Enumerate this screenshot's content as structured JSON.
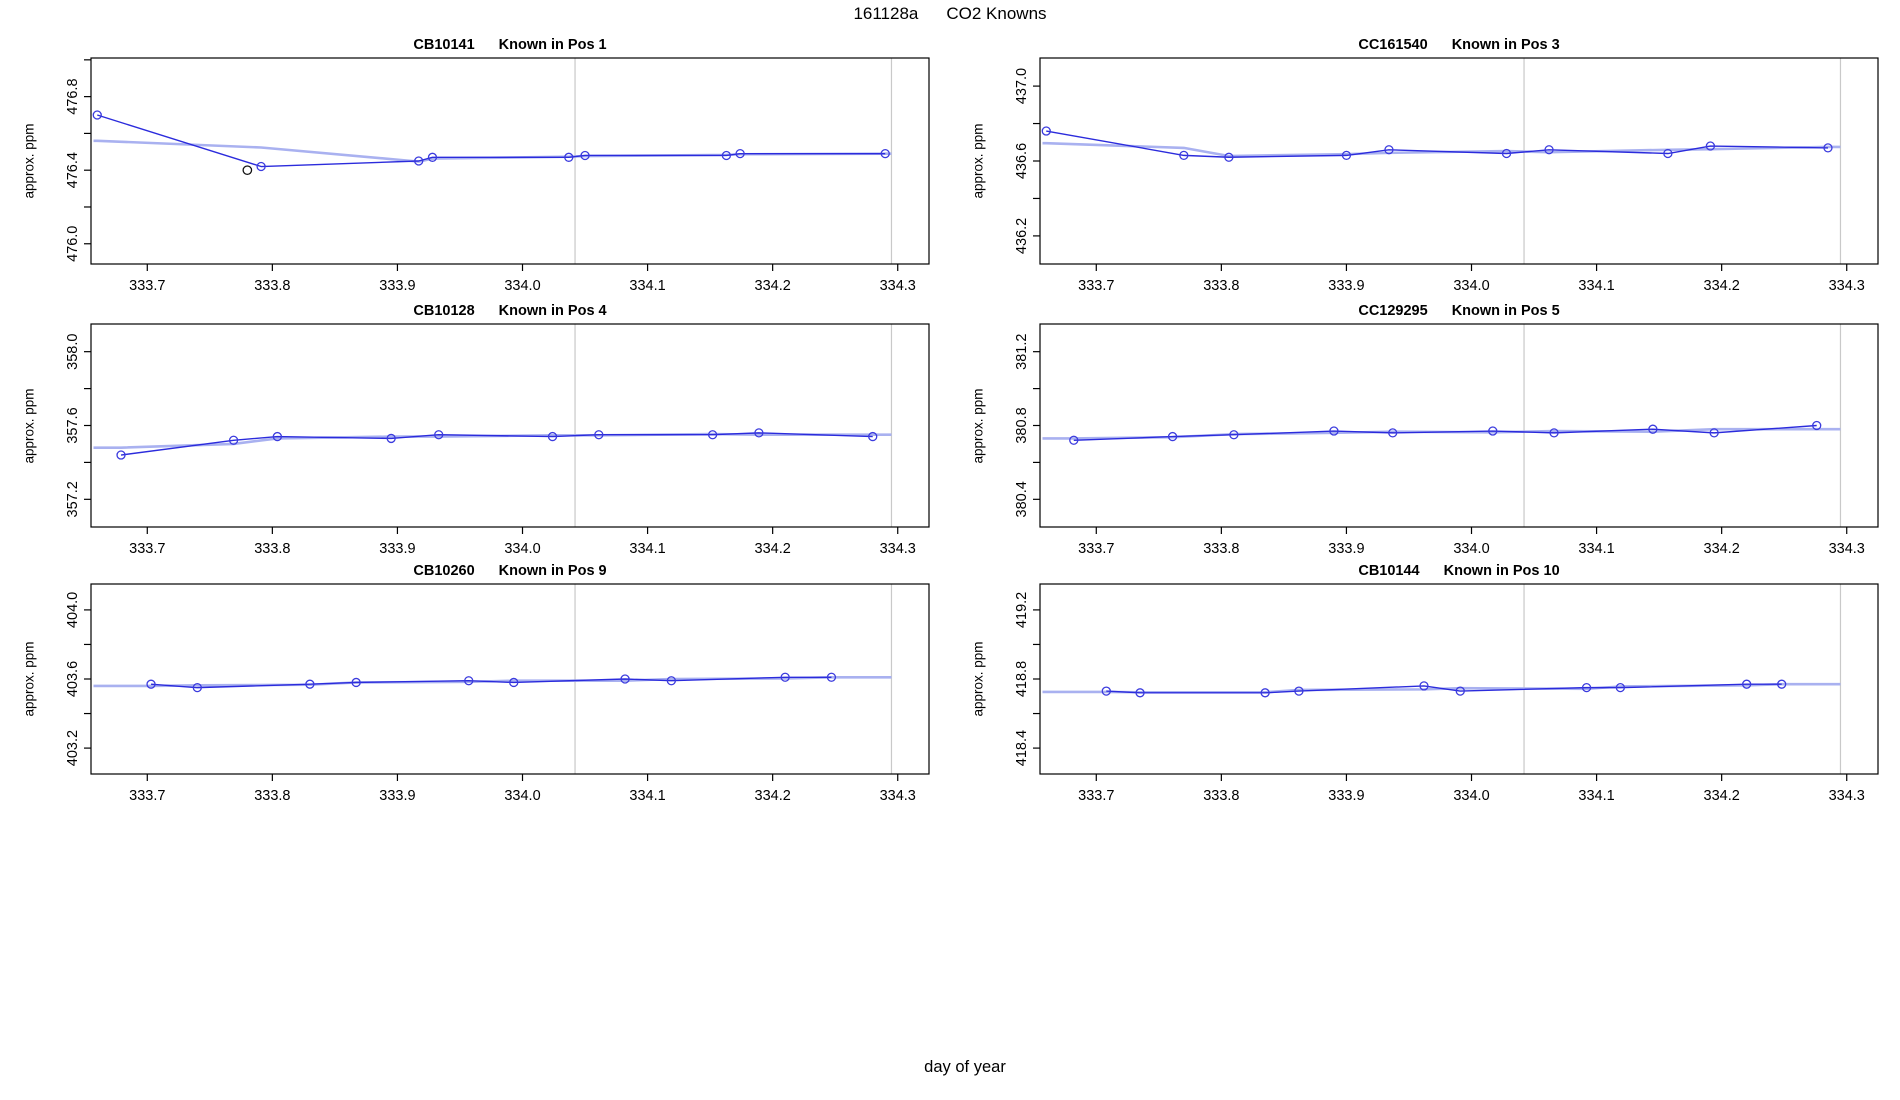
{
  "main_title": {
    "run_id": "161128a",
    "text": "CO2 Knowns"
  },
  "xlabel": "day of year",
  "ylabel": "approx. ppm",
  "colors": {
    "data_line": "#2b2bdc",
    "point_stroke": "#3b3bde",
    "trend_line": "#a9b1f0",
    "event_line": "#c9c9c9",
    "black_point": "#111111",
    "axis": "#000000",
    "background": "#ffffff"
  },
  "chart_data": [
    {
      "type": "line",
      "title_id": "CB10141",
      "title_pos": "Known in Pos 1",
      "ylabel": "approx. ppm",
      "xlim": [
        333.655,
        334.325
      ],
      "ylim": [
        475.89,
        477.01
      ],
      "x_ticks": [
        333.7,
        333.8,
        333.9,
        334.0,
        334.1,
        334.2,
        334.3
      ],
      "y_ticks": [
        476.0,
        476.2,
        476.4,
        476.6,
        476.8,
        477.0
      ],
      "y_tick_labels": [
        476.0,
        476.4,
        476.8
      ],
      "vlines": [
        334.042,
        334.295
      ],
      "x": [
        333.66,
        333.791,
        333.917,
        333.928,
        334.037,
        334.05,
        334.163,
        334.174,
        334.29
      ],
      "y": [
        476.7,
        476.42,
        476.45,
        476.47,
        476.47,
        476.48,
        476.48,
        476.49,
        476.49
      ],
      "extra_points": [
        {
          "x": 333.78,
          "y": 476.4,
          "color": "black"
        }
      ]
    },
    {
      "type": "line",
      "title_id": "CC161540",
      "title_pos": "Known in Pos 3",
      "ylabel": "approx. ppm",
      "xlim": [
        333.655,
        334.325
      ],
      "ylim": [
        436.05,
        437.15
      ],
      "x_ticks": [
        333.7,
        333.8,
        333.9,
        334.0,
        334.1,
        334.2,
        334.3
      ],
      "y_ticks": [
        436.2,
        436.4,
        436.6,
        436.8,
        437.0
      ],
      "y_tick_labels": [
        436.2,
        436.6,
        437.0
      ],
      "vlines": [
        334.042,
        334.295
      ],
      "x": [
        333.66,
        333.77,
        333.806,
        333.9,
        333.934,
        334.028,
        334.062,
        334.157,
        334.191,
        334.285
      ],
      "y": [
        436.76,
        436.63,
        436.62,
        436.63,
        436.66,
        436.64,
        436.66,
        436.64,
        436.68,
        436.67
      ],
      "extra_points": []
    },
    {
      "type": "line",
      "title_id": "CB10128",
      "title_pos": "Known in Pos 4",
      "ylabel": "approx. ppm",
      "xlim": [
        333.655,
        334.325
      ],
      "ylim": [
        357.05,
        358.15
      ],
      "x_ticks": [
        333.7,
        333.8,
        333.9,
        334.0,
        334.1,
        334.2,
        334.3
      ],
      "y_ticks": [
        357.2,
        357.4,
        357.6,
        357.8,
        358.0
      ],
      "y_tick_labels": [
        357.2,
        357.6,
        358.0
      ],
      "vlines": [
        334.042,
        334.295
      ],
      "x": [
        333.679,
        333.769,
        333.804,
        333.895,
        333.933,
        334.024,
        334.061,
        334.152,
        334.189,
        334.28
      ],
      "y": [
        357.44,
        357.52,
        357.54,
        357.53,
        357.55,
        357.54,
        357.55,
        357.55,
        357.56,
        357.54
      ],
      "extra_points": []
    },
    {
      "type": "line",
      "title_id": "CC129295",
      "title_pos": "Known in Pos 5",
      "ylabel": "approx. ppm",
      "xlim": [
        333.655,
        334.325
      ],
      "ylim": [
        380.25,
        381.35
      ],
      "x_ticks": [
        333.7,
        333.8,
        333.9,
        334.0,
        334.1,
        334.2,
        334.3
      ],
      "y_ticks": [
        380.4,
        380.6,
        380.8,
        381.0,
        381.2
      ],
      "y_tick_labels": [
        380.4,
        380.8,
        381.2
      ],
      "vlines": [
        334.042,
        334.295
      ],
      "x": [
        333.682,
        333.761,
        333.81,
        333.89,
        333.937,
        334.017,
        334.066,
        334.145,
        334.194,
        334.276
      ],
      "y": [
        380.72,
        380.74,
        380.75,
        380.77,
        380.76,
        380.77,
        380.76,
        380.78,
        380.76,
        380.8
      ],
      "extra_points": []
    },
    {
      "type": "line",
      "title_id": "CB10260",
      "title_pos": "Known in Pos 9",
      "ylabel": "approx. ppm",
      "xlim": [
        333.655,
        334.325
      ],
      "ylim": [
        403.05,
        404.15
      ],
      "x_ticks": [
        333.7,
        333.8,
        333.9,
        334.0,
        334.1,
        334.2,
        334.3
      ],
      "y_ticks": [
        403.2,
        403.4,
        403.6,
        403.8,
        404.0
      ],
      "y_tick_labels": [
        403.2,
        403.6,
        404.0
      ],
      "vlines": [
        334.042,
        334.295
      ],
      "x": [
        333.703,
        333.74,
        333.83,
        333.867,
        333.957,
        333.993,
        334.082,
        334.119,
        334.21,
        334.247
      ],
      "y": [
        403.57,
        403.55,
        403.57,
        403.58,
        403.59,
        403.58,
        403.6,
        403.59,
        403.61,
        403.61
      ],
      "extra_points": []
    },
    {
      "type": "line",
      "title_id": "CB10144",
      "title_pos": "Known in Pos 10",
      "ylabel": "approx. ppm",
      "xlim": [
        333.655,
        334.325
      ],
      "ylim": [
        418.25,
        419.35
      ],
      "x_ticks": [
        333.7,
        333.8,
        333.9,
        334.0,
        334.1,
        334.2,
        334.3
      ],
      "y_ticks": [
        418.4,
        418.6,
        418.8,
        419.0,
        419.2
      ],
      "y_tick_labels": [
        418.4,
        418.8,
        419.2
      ],
      "vlines": [
        334.042,
        334.295
      ],
      "x": [
        333.708,
        333.735,
        333.835,
        333.862,
        333.962,
        333.991,
        334.092,
        334.119,
        334.22,
        334.248
      ],
      "y": [
        418.73,
        418.72,
        418.72,
        418.73,
        418.76,
        418.73,
        418.75,
        418.75,
        418.77,
        418.77
      ],
      "extra_points": []
    }
  ]
}
